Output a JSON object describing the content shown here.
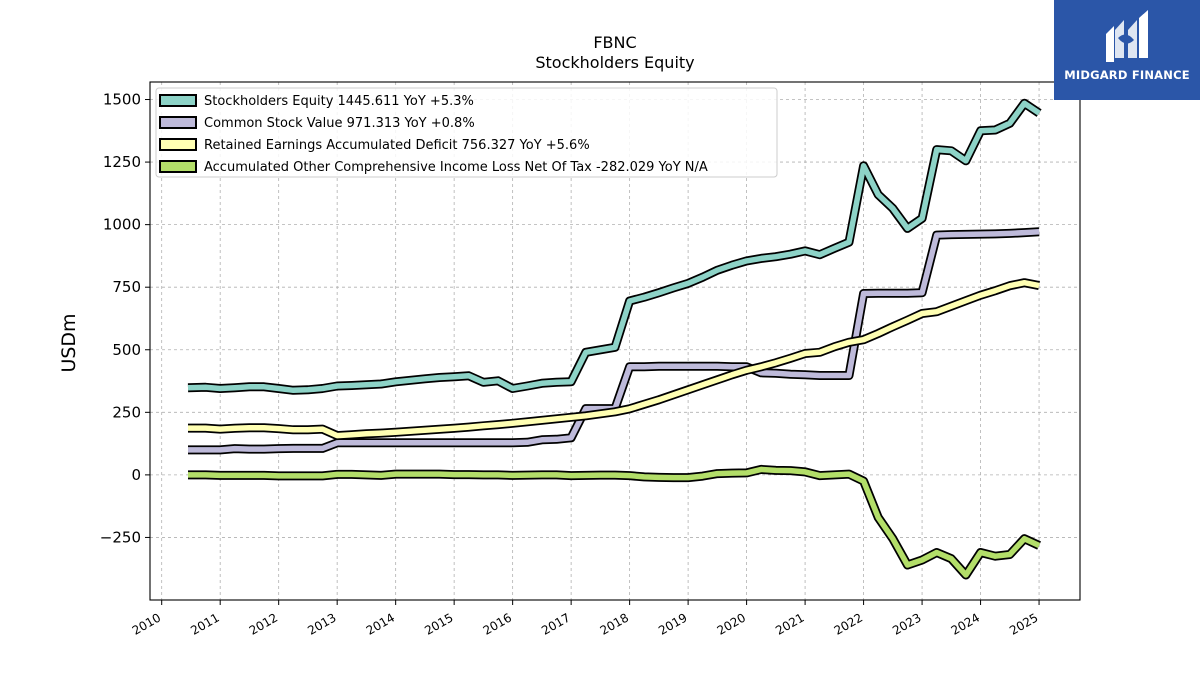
{
  "logo": {
    "name": "MIDGARD FINANCE",
    "icon": "midgard-logo-icon",
    "background": "#2b56a8"
  },
  "chart_data": {
    "type": "line",
    "title": "FBNC",
    "subtitle": "Stockholders  Equity",
    "xlabel": "",
    "ylabel": "USDm",
    "xlim": [
      2009.8,
      2025.7
    ],
    "ylim": [
      -500,
      1570
    ],
    "x_ticks": [
      2010,
      2011,
      2012,
      2013,
      2014,
      2015,
      2016,
      2017,
      2018,
      2019,
      2020,
      2021,
      2022,
      2023,
      2024,
      2025
    ],
    "x_tick_labels": [
      "2010",
      "2011",
      "2012",
      "2013",
      "2014",
      "2015",
      "2016",
      "2017",
      "2018",
      "2019",
      "2020",
      "2021",
      "2022",
      "2023",
      "2024",
      "2025"
    ],
    "y_ticks": [
      -250,
      0,
      250,
      500,
      750,
      1000,
      1250,
      1500
    ],
    "y_tick_labels": [
      "−250",
      "0",
      "250",
      "500",
      "750",
      "1000",
      "1250",
      "1500"
    ],
    "grid": true,
    "legend_position": "top-left",
    "series": [
      {
        "name": "Stockholders Equity  1445.611 YoY +5.3%",
        "color": "#8dd3c7",
        "points": [
          [
            2010.45,
            348
          ],
          [
            2010.75,
            350
          ],
          [
            2011.0,
            345
          ],
          [
            2011.25,
            348
          ],
          [
            2011.5,
            352
          ],
          [
            2011.75,
            352
          ],
          [
            2012.0,
            345
          ],
          [
            2012.25,
            338
          ],
          [
            2012.5,
            340
          ],
          [
            2012.75,
            345
          ],
          [
            2013.0,
            355
          ],
          [
            2013.25,
            357
          ],
          [
            2013.5,
            360
          ],
          [
            2013.75,
            363
          ],
          [
            2014.0,
            372
          ],
          [
            2014.25,
            378
          ],
          [
            2014.5,
            384
          ],
          [
            2014.75,
            389
          ],
          [
            2015.0,
            392
          ],
          [
            2015.25,
            396
          ],
          [
            2015.5,
            370
          ],
          [
            2015.75,
            376
          ],
          [
            2016.0,
            345
          ],
          [
            2016.25,
            355
          ],
          [
            2016.5,
            366
          ],
          [
            2016.75,
            370
          ],
          [
            2017.0,
            372
          ],
          [
            2017.25,
            490
          ],
          [
            2017.5,
            500
          ],
          [
            2017.75,
            510
          ],
          [
            2018.0,
            695
          ],
          [
            2018.25,
            710
          ],
          [
            2018.5,
            728
          ],
          [
            2018.75,
            747
          ],
          [
            2019.0,
            765
          ],
          [
            2019.25,
            790
          ],
          [
            2019.5,
            818
          ],
          [
            2019.75,
            838
          ],
          [
            2020.0,
            855
          ],
          [
            2020.25,
            865
          ],
          [
            2020.5,
            872
          ],
          [
            2020.75,
            882
          ],
          [
            2021.0,
            895
          ],
          [
            2021.25,
            880
          ],
          [
            2021.5,
            905
          ],
          [
            2021.75,
            930
          ],
          [
            2022.0,
            1235
          ],
          [
            2022.25,
            1120
          ],
          [
            2022.5,
            1065
          ],
          [
            2022.75,
            985
          ],
          [
            2023.0,
            1025
          ],
          [
            2023.25,
            1300
          ],
          [
            2023.5,
            1295
          ],
          [
            2023.75,
            1255
          ],
          [
            2024.0,
            1375
          ],
          [
            2024.25,
            1378
          ],
          [
            2024.5,
            1405
          ],
          [
            2024.75,
            1485
          ],
          [
            2025.0,
            1445.611
          ]
        ]
      },
      {
        "name": "Common Stock Value  971.313 YoY +0.8%",
        "color": "#bebada",
        "points": [
          [
            2010.45,
            100
          ],
          [
            2010.75,
            100
          ],
          [
            2011.0,
            100
          ],
          [
            2011.25,
            105
          ],
          [
            2011.5,
            103
          ],
          [
            2011.75,
            103
          ],
          [
            2012.0,
            105
          ],
          [
            2012.25,
            106
          ],
          [
            2012.5,
            106
          ],
          [
            2012.75,
            106
          ],
          [
            2013.0,
            128
          ],
          [
            2013.25,
            128
          ],
          [
            2013.5,
            128
          ],
          [
            2013.75,
            128
          ],
          [
            2014.0,
            128
          ],
          [
            2014.25,
            128
          ],
          [
            2014.5,
            128
          ],
          [
            2014.75,
            128
          ],
          [
            2015.0,
            128
          ],
          [
            2015.25,
            128
          ],
          [
            2015.5,
            128
          ],
          [
            2015.75,
            128
          ],
          [
            2016.0,
            128
          ],
          [
            2016.25,
            130
          ],
          [
            2016.5,
            140
          ],
          [
            2016.75,
            142
          ],
          [
            2017.0,
            148
          ],
          [
            2017.25,
            265
          ],
          [
            2017.5,
            265
          ],
          [
            2017.75,
            265
          ],
          [
            2018.0,
            432
          ],
          [
            2018.25,
            432
          ],
          [
            2018.5,
            434
          ],
          [
            2018.75,
            434
          ],
          [
            2019.0,
            434
          ],
          [
            2019.25,
            434
          ],
          [
            2019.5,
            434
          ],
          [
            2019.75,
            432
          ],
          [
            2020.0,
            432
          ],
          [
            2020.25,
            408
          ],
          [
            2020.5,
            406
          ],
          [
            2020.75,
            402
          ],
          [
            2021.0,
            400
          ],
          [
            2021.25,
            397
          ],
          [
            2021.5,
            397
          ],
          [
            2021.75,
            397
          ],
          [
            2022.0,
            725
          ],
          [
            2022.25,
            726
          ],
          [
            2022.5,
            726
          ],
          [
            2022.75,
            726
          ],
          [
            2023.0,
            728
          ],
          [
            2023.25,
            958
          ],
          [
            2023.5,
            960
          ],
          [
            2023.75,
            961
          ],
          [
            2024.0,
            962
          ],
          [
            2024.25,
            963
          ],
          [
            2024.5,
            965
          ],
          [
            2024.75,
            968
          ],
          [
            2025.0,
            971.313
          ]
        ]
      },
      {
        "name": "Retained Earnings Accumulated Deficit  756.327 YoY +5.6%",
        "color": "#ffffb3",
        "points": [
          [
            2010.45,
            187
          ],
          [
            2010.75,
            187
          ],
          [
            2011.0,
            183
          ],
          [
            2011.25,
            186
          ],
          [
            2011.5,
            188
          ],
          [
            2011.75,
            188
          ],
          [
            2012.0,
            185
          ],
          [
            2012.25,
            180
          ],
          [
            2012.5,
            180
          ],
          [
            2012.75,
            183
          ],
          [
            2013.0,
            157
          ],
          [
            2013.25,
            160
          ],
          [
            2013.5,
            164
          ],
          [
            2013.75,
            167
          ],
          [
            2014.0,
            170
          ],
          [
            2014.25,
            174
          ],
          [
            2014.5,
            178
          ],
          [
            2014.75,
            182
          ],
          [
            2015.0,
            186
          ],
          [
            2015.25,
            191
          ],
          [
            2015.5,
            196
          ],
          [
            2015.75,
            201
          ],
          [
            2016.0,
            206
          ],
          [
            2016.25,
            212
          ],
          [
            2016.5,
            218
          ],
          [
            2016.75,
            224
          ],
          [
            2017.0,
            230
          ],
          [
            2017.25,
            236
          ],
          [
            2017.5,
            244
          ],
          [
            2017.75,
            252
          ],
          [
            2018.0,
            264
          ],
          [
            2018.25,
            282
          ],
          [
            2018.5,
            300
          ],
          [
            2018.75,
            320
          ],
          [
            2019.0,
            340
          ],
          [
            2019.25,
            360
          ],
          [
            2019.5,
            380
          ],
          [
            2019.75,
            400
          ],
          [
            2020.0,
            418
          ],
          [
            2020.25,
            432
          ],
          [
            2020.5,
            448
          ],
          [
            2020.75,
            466
          ],
          [
            2021.0,
            485
          ],
          [
            2021.25,
            490
          ],
          [
            2021.5,
            512
          ],
          [
            2021.75,
            530
          ],
          [
            2022.0,
            540
          ],
          [
            2022.25,
            565
          ],
          [
            2022.5,
            592
          ],
          [
            2022.75,
            618
          ],
          [
            2023.0,
            645
          ],
          [
            2023.25,
            652
          ],
          [
            2023.5,
            674
          ],
          [
            2023.75,
            696
          ],
          [
            2024.0,
            718
          ],
          [
            2024.25,
            736
          ],
          [
            2024.5,
            756
          ],
          [
            2024.75,
            768
          ],
          [
            2025.0,
            756.327
          ]
        ]
      },
      {
        "name": "Accumulated Other Comprehensive Income Loss Net Of Tax  -282.029 YoY N/A",
        "color": "#b3de69",
        "points": [
          [
            2010.45,
            0
          ],
          [
            2010.75,
            0
          ],
          [
            2011.0,
            -2
          ],
          [
            2011.25,
            -2
          ],
          [
            2011.5,
            -2
          ],
          [
            2011.75,
            -2
          ],
          [
            2012.0,
            -4
          ],
          [
            2012.25,
            -4
          ],
          [
            2012.5,
            -4
          ],
          [
            2012.75,
            -4
          ],
          [
            2013.0,
            2
          ],
          [
            2013.25,
            2
          ],
          [
            2013.5,
            0
          ],
          [
            2013.75,
            -2
          ],
          [
            2014.0,
            3
          ],
          [
            2014.25,
            3
          ],
          [
            2014.5,
            3
          ],
          [
            2014.75,
            3
          ],
          [
            2015.0,
            1
          ],
          [
            2015.25,
            1
          ],
          [
            2015.5,
            0
          ],
          [
            2015.75,
            0
          ],
          [
            2016.0,
            -2
          ],
          [
            2016.25,
            -1
          ],
          [
            2016.5,
            0
          ],
          [
            2016.75,
            0
          ],
          [
            2017.0,
            -3
          ],
          [
            2017.25,
            -2
          ],
          [
            2017.5,
            -1
          ],
          [
            2017.75,
            -1
          ],
          [
            2018.0,
            -3
          ],
          [
            2018.25,
            -8
          ],
          [
            2018.5,
            -10
          ],
          [
            2018.75,
            -11
          ],
          [
            2019.0,
            -11
          ],
          [
            2019.25,
            -5
          ],
          [
            2019.5,
            5
          ],
          [
            2019.75,
            7
          ],
          [
            2020.0,
            8
          ],
          [
            2020.25,
            22
          ],
          [
            2020.5,
            18
          ],
          [
            2020.75,
            17
          ],
          [
            2021.0,
            12
          ],
          [
            2021.25,
            -3
          ],
          [
            2021.5,
            0
          ],
          [
            2021.75,
            3
          ],
          [
            2022.0,
            -25
          ],
          [
            2022.25,
            -170
          ],
          [
            2022.5,
            -255
          ],
          [
            2022.75,
            -360
          ],
          [
            2023.0,
            -340
          ],
          [
            2023.25,
            -310
          ],
          [
            2023.5,
            -335
          ],
          [
            2023.75,
            -400
          ],
          [
            2024.0,
            -310
          ],
          [
            2024.25,
            -325
          ],
          [
            2024.5,
            -318
          ],
          [
            2024.75,
            -255
          ],
          [
            2025.0,
            -282.029
          ]
        ]
      }
    ]
  }
}
